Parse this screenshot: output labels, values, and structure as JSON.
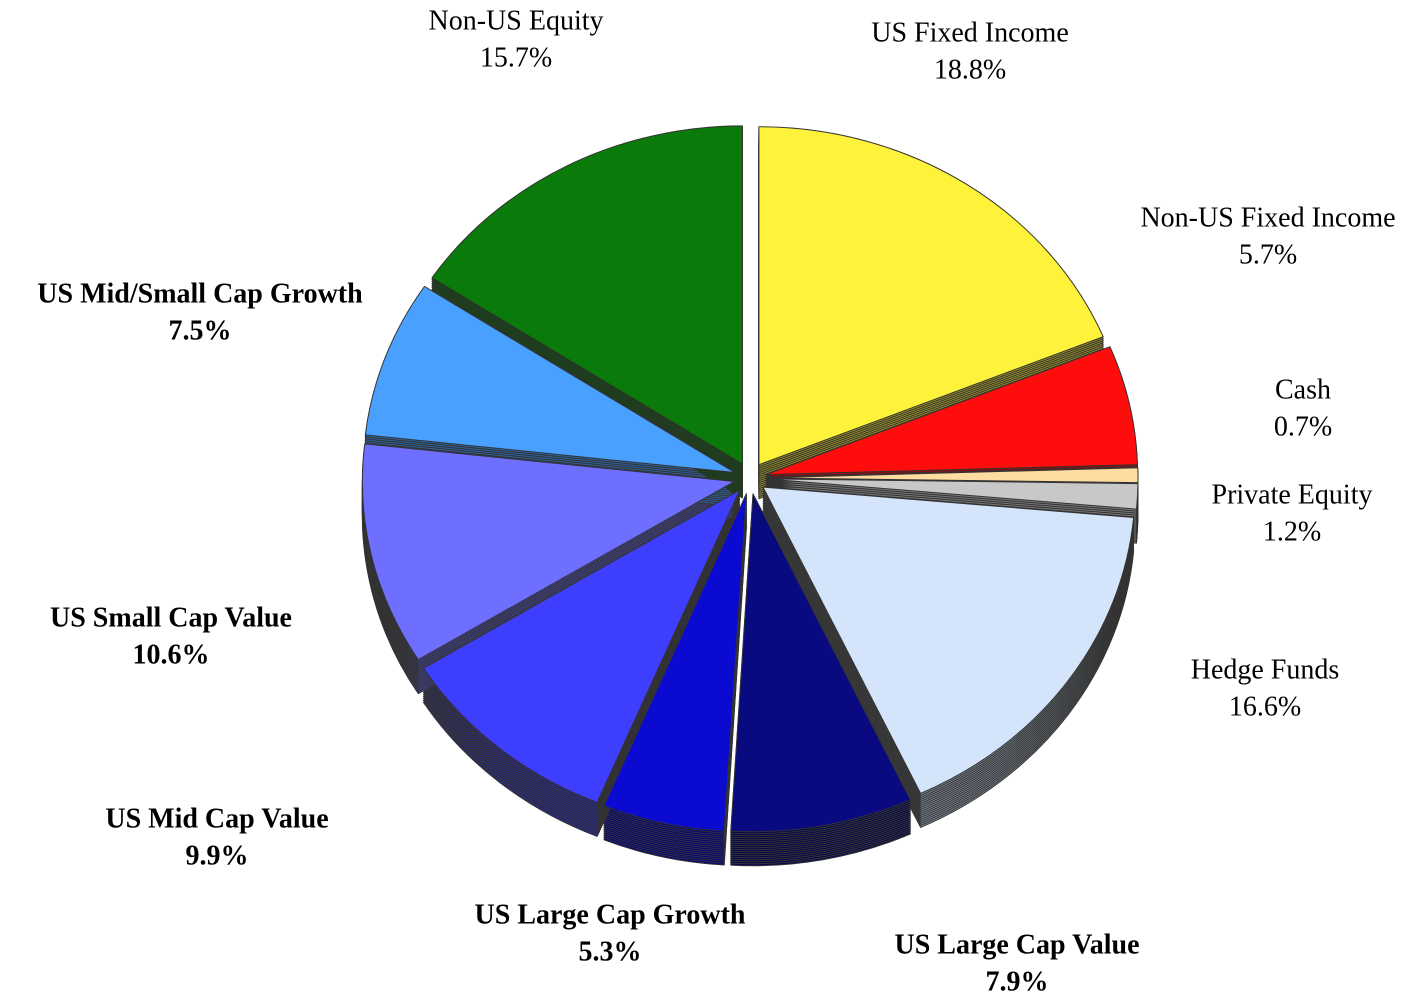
{
  "chart_data": {
    "type": "pie",
    "categories": [
      "US Fixed Income",
      "Non-US Fixed Income",
      "Cash",
      "Private Equity",
      "Hedge Funds",
      "US Large Cap Value",
      "US Large Cap Growth",
      "US Mid Cap Value",
      "US Small Cap Value",
      "US Mid/Small Cap Growth",
      "Non-US Equity"
    ],
    "values": [
      18.8,
      5.7,
      0.7,
      1.2,
      16.6,
      7.9,
      5.3,
      9.9,
      10.6,
      7.5,
      15.7
    ],
    "value_labels": [
      "18.8%",
      "5.7%",
      "0.7%",
      "1.2%",
      "16.6%",
      "7.9%",
      "5.3%",
      "9.9%",
      "10.6%",
      "7.5%",
      "15.7%"
    ],
    "colors": [
      "#fff23a",
      "#ff0d0d",
      "#ffdca0",
      "#c8c8c8",
      "#d4e4fa",
      "#0a0a80",
      "#0a0ad0",
      "#3e3eff",
      "#6e6eff",
      "#4aa0ff",
      "#0a7a0a"
    ]
  }
}
